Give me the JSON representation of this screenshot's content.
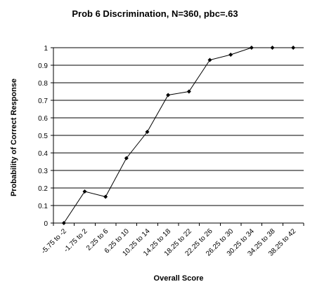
{
  "chart_data": {
    "type": "line",
    "title": "Prob 6 Discrimination, N=360, pbc=.63",
    "xlabel": "Overall Score",
    "ylabel": "Probability of Correct Response",
    "categories": [
      "-5.75 to -2",
      "-1.75 to 2",
      "2.25 to 6",
      "6.25 to 10",
      "10.25 to 14",
      "14.25 to 18",
      "18.25 to 22",
      "22.25 to 26",
      "26.25 to 30",
      "30.25 to 34",
      "34.25 to 38",
      "38.25 to 42"
    ],
    "series": [
      {
        "values": [
          0,
          0.18,
          0.15,
          0.37,
          0.52,
          0.73,
          0.75,
          0.93,
          0.96,
          1.0,
          1.0,
          1.0
        ]
      }
    ],
    "ylim": [
      0,
      1
    ],
    "yticks": [
      0,
      0.1,
      0.2,
      0.3,
      0.4,
      0.5,
      0.6,
      0.7,
      0.8,
      0.9,
      1
    ],
    "ytick_labels": [
      "0",
      "0.1",
      "0.2",
      "0.3",
      "0.4",
      "0.5",
      "0.6",
      "0.7",
      "0.8",
      "0.9",
      "1"
    ],
    "grid": true,
    "legend": "none",
    "marker": "diamond",
    "colors": {
      "line": "#000000",
      "grid": "#000000",
      "background": "#ffffff"
    }
  }
}
